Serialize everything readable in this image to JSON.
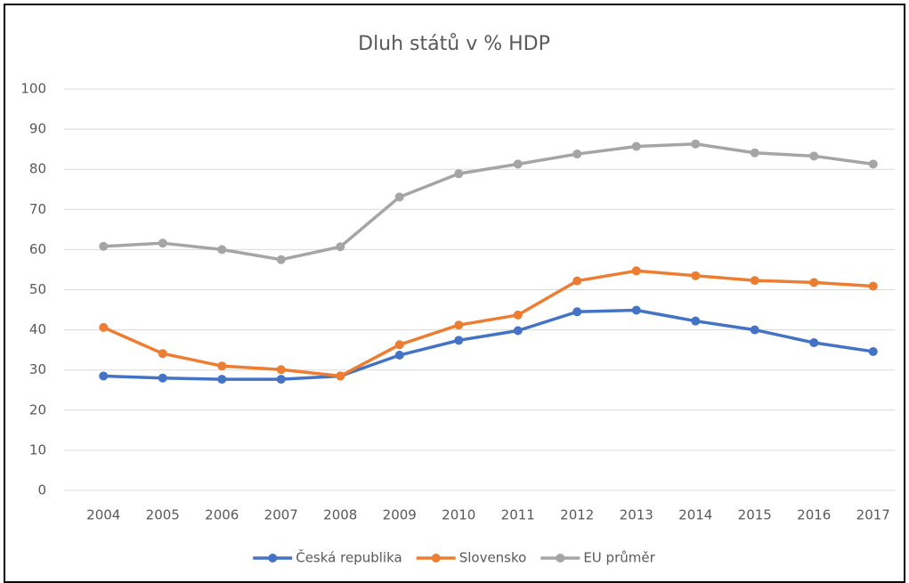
{
  "chart_data": {
    "type": "line",
    "title": "Dluh států v % HDP",
    "categories": [
      "2004",
      "2005",
      "2006",
      "2007",
      "2008",
      "2009",
      "2010",
      "2011",
      "2012",
      "2013",
      "2014",
      "2015",
      "2016",
      "2017"
    ],
    "series": [
      {
        "name": "Česká republika",
        "color": "#4472c4",
        "values": [
          28.5,
          28.0,
          27.7,
          27.7,
          28.5,
          33.7,
          37.4,
          39.8,
          44.5,
          44.9,
          42.2,
          40.0,
          36.8,
          34.6
        ]
      },
      {
        "name": "Slovensko",
        "color": "#ed7d31",
        "values": [
          40.6,
          34.1,
          31.0,
          30.1,
          28.5,
          36.3,
          41.2,
          43.7,
          52.2,
          54.7,
          53.5,
          52.3,
          51.8,
          50.9
        ]
      },
      {
        "name": "EU průměr",
        "color": "#a5a5a5",
        "values": [
          60.8,
          61.6,
          60.0,
          57.5,
          60.7,
          73.1,
          78.9,
          81.3,
          83.8,
          85.7,
          86.3,
          84.1,
          83.3,
          81.3
        ]
      }
    ],
    "ylim": [
      0,
      100
    ],
    "yticks": [
      0,
      10,
      20,
      30,
      40,
      50,
      60,
      70,
      80,
      90,
      100
    ],
    "grid": true,
    "legend": "bottom"
  }
}
